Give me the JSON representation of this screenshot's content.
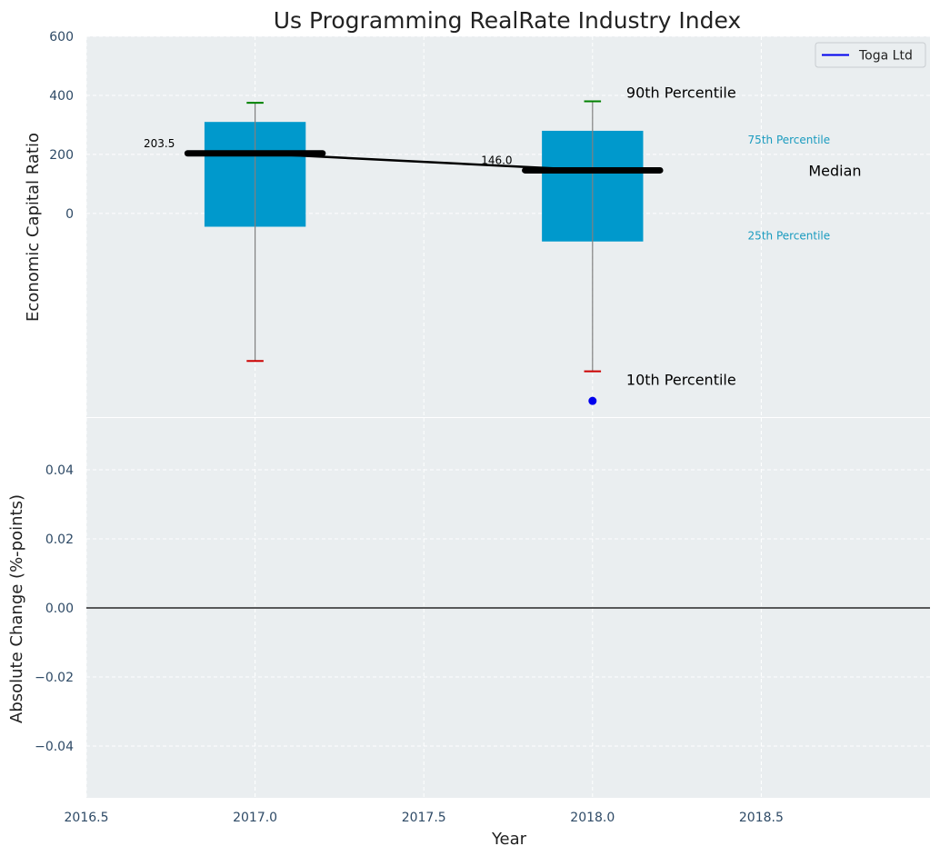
{
  "title": "Us Programming RealRate Industry Index",
  "colors": {
    "panel_bg": "#eaeef0",
    "box": "#0099cc",
    "whisker": "#808080",
    "cap_top": "#008000",
    "cap_bottom": "#cc0000",
    "median": "#000000",
    "company": "#0000ee",
    "tick_text": "#2e4a66",
    "pct_label_small": "#1a9bbf"
  },
  "chart_data": [
    {
      "type": "box",
      "ylabel": "Economic Capital Ratio",
      "xlim": [
        2016.5,
        2019.0
      ],
      "ylim": [
        -690,
        600
      ],
      "yticks": [
        0,
        200,
        400,
        600
      ],
      "grid": true,
      "legend": {
        "entries": [
          "Toga Ltd"
        ],
        "placement": "top-right"
      },
      "boxes": [
        {
          "x": 2017.0,
          "p10": -500,
          "p25": -45,
          "median": 203.5,
          "p75": 310,
          "p90": 375,
          "median_label": "203.5"
        },
        {
          "x": 2018.0,
          "p10": -535,
          "p25": -95,
          "median": 146.0,
          "p75": 280,
          "p90": 380,
          "median_label": "146.0"
        }
      ],
      "median_line": {
        "x": [
          2017.0,
          2018.0
        ],
        "y": [
          203.5,
          146.0
        ]
      },
      "company": {
        "name": "Toga Ltd",
        "points": [
          {
            "x": 2018.0,
            "y": -635
          }
        ]
      },
      "annotations": {
        "p90": "90th Percentile",
        "p75": "75th Percentile",
        "median": "Median",
        "p25": "25th Percentile",
        "p10": "10th Percentile"
      }
    },
    {
      "type": "line",
      "xlabel": "Year",
      "ylabel": "Absolute Change (%-points)",
      "xlim": [
        2016.5,
        2019.0
      ],
      "ylim": [
        -0.055,
        0.055
      ],
      "xticks": [
        2016.5,
        2017.0,
        2017.5,
        2018.0,
        2018.5
      ],
      "xtick_labels": [
        "2016.5",
        "2017.0",
        "2017.5",
        "2018.0",
        "2018.5"
      ],
      "yticks": [
        -0.04,
        -0.02,
        0.0,
        0.02,
        0.04
      ],
      "ytick_labels": [
        "−0.04",
        "−0.02",
        "0.00",
        "0.02",
        "0.04"
      ],
      "grid": true,
      "zero_line": 0
    }
  ]
}
